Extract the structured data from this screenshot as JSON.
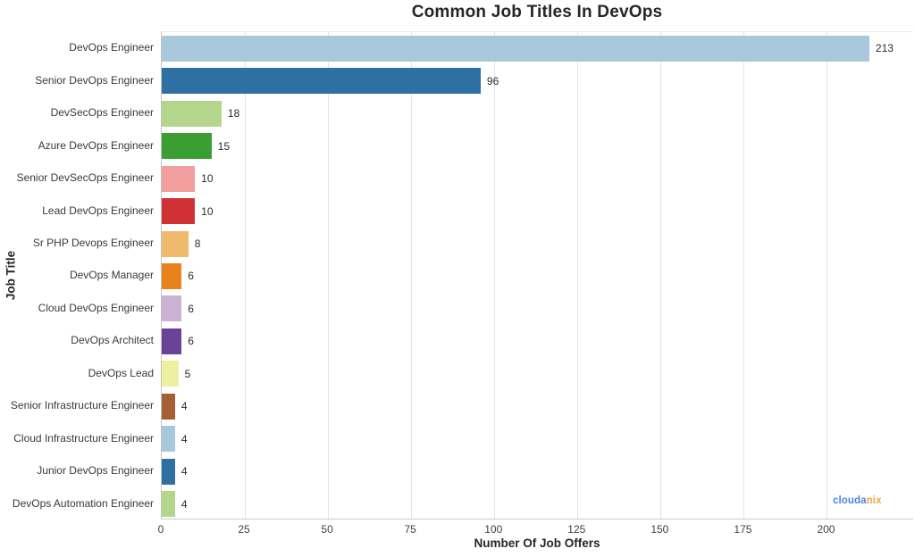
{
  "title": "Common Job Titles In DevOps",
  "watermark": {
    "part1": "clouda",
    "part2": "nix",
    "part1_color": "#4e82e4",
    "part2_color": "#f2a73b"
  },
  "chart_data": {
    "type": "bar",
    "orientation": "horizontal",
    "title": "Common Job Titles In DevOps",
    "xlabel": "Number Of Job Offers",
    "ylabel": "Job Title",
    "xlim": [
      0,
      226.2
    ],
    "xticks": [
      0,
      25,
      50,
      75,
      100,
      125,
      150,
      175,
      200
    ],
    "grid": "vertical",
    "legend": "none",
    "categories": [
      "DevOps Engineer",
      "Senior DevOps Engineer",
      "DevSecOps Engineer",
      "Azure DevOps Engineer",
      "Senior DevSecOps Engineer",
      "Lead DevOps Engineer",
      "Sr PHP Devops Engineer",
      "DevOps Manager",
      "Cloud DevOps Engineer",
      "DevOps Architect",
      "DevOps Lead",
      "Senior Infrastructure Engineer",
      "Cloud Infrastructure Engineer",
      "Junior DevOps Engineer",
      "DevOps Automation Engineer"
    ],
    "values": [
      213,
      96,
      18,
      15,
      10,
      10,
      8,
      6,
      6,
      6,
      5,
      4,
      4,
      4,
      4
    ],
    "bar_colors": [
      "#a9c8dc",
      "#2d70a1",
      "#b3d68c",
      "#3a9e33",
      "#f29e9e",
      "#d03134",
      "#f0ba6e",
      "#e8821a",
      "#cab3d5",
      "#6a4297",
      "#eef0a0",
      "#a65e35",
      "#a9c8dc",
      "#2d70a1",
      "#b3d68c"
    ],
    "gridline_color": "#e3e3e3"
  }
}
